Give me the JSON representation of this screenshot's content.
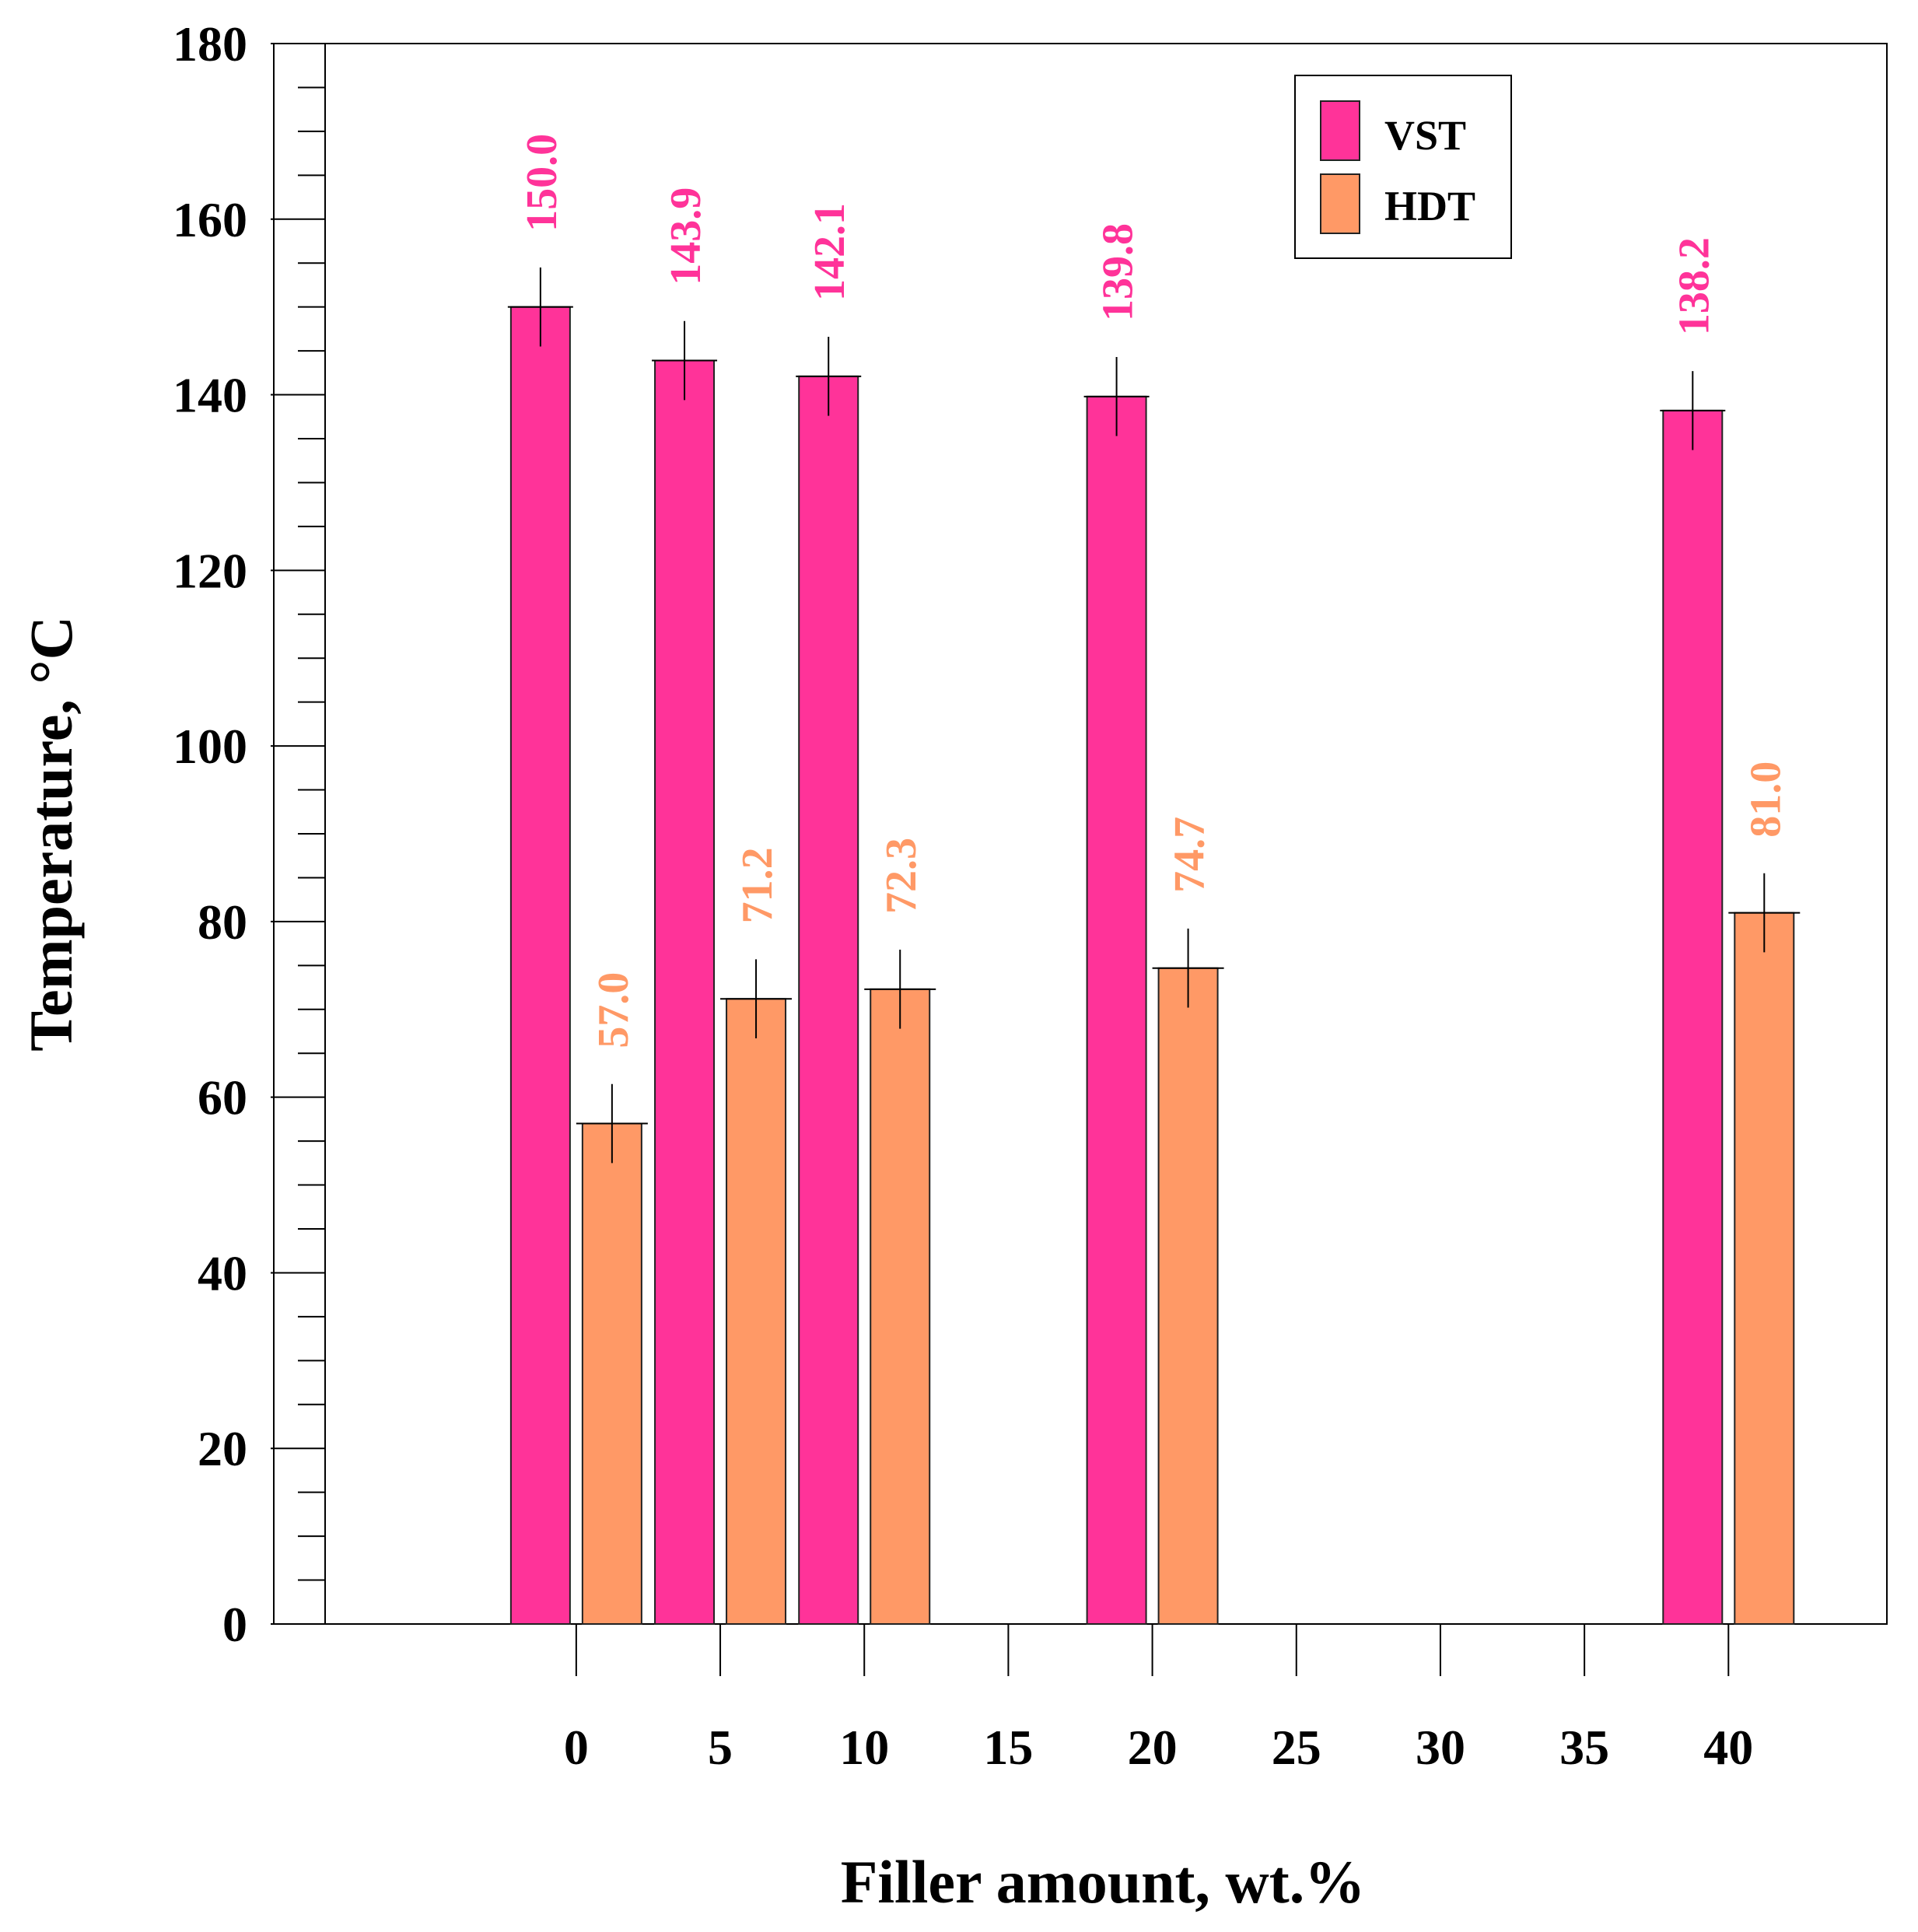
{
  "chart_data": {
    "type": "bar",
    "title": "",
    "xlabel": "Filler amount, wt.%",
    "ylabel": "Temperature, °C",
    "ylim": [
      0,
      180
    ],
    "yticks": [
      0,
      20,
      40,
      60,
      80,
      100,
      120,
      140,
      160,
      180
    ],
    "xlim": [
      -10.5,
      45.5
    ],
    "xticks": [
      0,
      5,
      10,
      15,
      20,
      25,
      30,
      35,
      40
    ],
    "xtick_labels": [
      "0",
      "5",
      "10",
      "15",
      "20",
      "25",
      "30",
      "35",
      "40"
    ],
    "categories": [
      0,
      5,
      10,
      20,
      40
    ],
    "grid": false,
    "legend_position": "top-right",
    "series": [
      {
        "name": "VST",
        "color": "#ff3399",
        "values": [
          150.0,
          143.9,
          142.1,
          139.8,
          138.2
        ],
        "errors": [
          4.5,
          4.5,
          4.5,
          4.5,
          4.5
        ],
        "labels": [
          "150.0",
          "143.9",
          "142.1",
          "139.8",
          "138.2"
        ]
      },
      {
        "name": "HDT",
        "color": "#ff9966",
        "values": [
          57.0,
          71.2,
          72.3,
          74.7,
          81.0
        ],
        "errors": [
          4.5,
          4.5,
          4.5,
          4.5,
          4.5
        ],
        "labels": [
          "57.0",
          "71.2",
          "72.3",
          "74.7",
          "81.0"
        ]
      }
    ]
  }
}
